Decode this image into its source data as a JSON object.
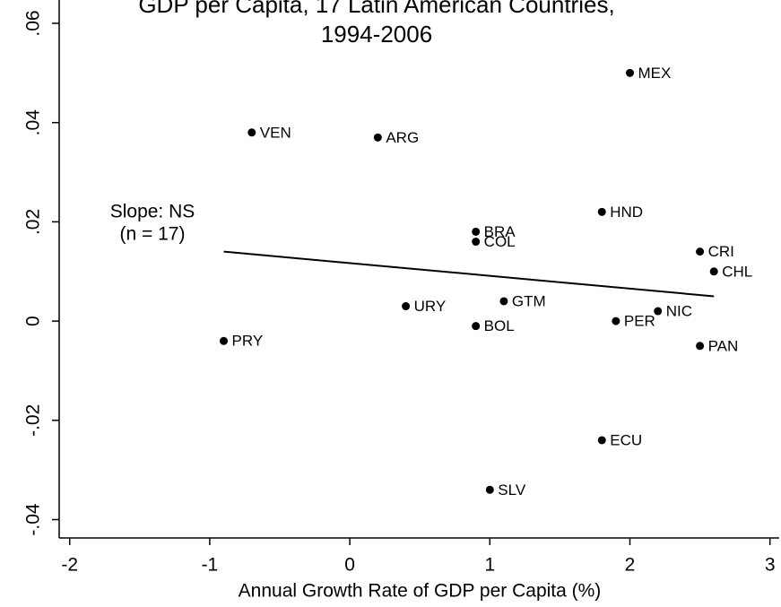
{
  "chart_data": {
    "type": "scatter",
    "title": [
      "GDP per Capita, 17 Latin American Countries,",
      "1994-2006"
    ],
    "xlabel": "Annual Growth Rate of GDP per Capita (%)",
    "annotation": [
      "Slope: NS",
      "(n = 17)"
    ],
    "xlim": [
      -2.075,
      3.066
    ],
    "ylim": [
      -0.0437,
      0.0647
    ],
    "xticks": [
      -2,
      -1,
      0,
      1,
      2,
      3
    ],
    "yticks": [
      {
        "value": 0.06,
        "label": ".06"
      },
      {
        "value": 0.04,
        "label": ".04"
      },
      {
        "value": 0.02,
        "label": ".02"
      },
      0,
      {
        "value": -0.02,
        "label": "-.02"
      },
      {
        "value": -0.04,
        "label": "-.04"
      }
    ],
    "color": "#000000",
    "point_labels": [
      "MEX",
      "VEN",
      "ARG",
      "HND",
      "BRA",
      "COL",
      "CRI",
      "CHL",
      "GTM",
      "URY",
      "NIC",
      "PER",
      "BOL",
      "PRY",
      "PAN",
      "ECU",
      "SLV"
    ],
    "x": [
      2.0,
      -0.7,
      0.2,
      1.8,
      0.9,
      0.9,
      2.5,
      2.6,
      1.1,
      0.4,
      2.2,
      1.9,
      0.9,
      -0.9,
      2.5,
      1.8,
      1.0
    ],
    "values": [
      0.05,
      0.038,
      0.037,
      0.022,
      0.018,
      0.016,
      0.014,
      0.01,
      0.004,
      0.003,
      0.002,
      0.0,
      -0.001,
      -0.004,
      -0.005,
      -0.024,
      -0.034
    ],
    "fit_line": {
      "x": [
        -0.9,
        2.6
      ],
      "values": [
        0.014,
        0.005
      ]
    }
  }
}
